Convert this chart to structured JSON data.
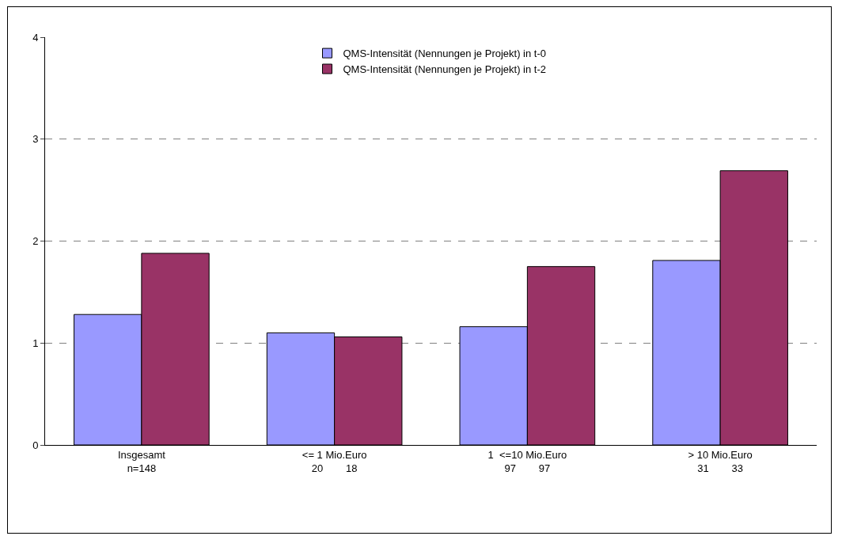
{
  "chart_data": {
    "type": "bar",
    "categories": [
      "Insgesamt\nn=148",
      "<= 1 Mio.Euro\n20        18",
      "1  <=10 Mio.Euro\n97        97",
      "> 10 Mio.Euro\n31        33"
    ],
    "series": [
      {
        "name": "QMS-Intensität (Nennungen je Projekt) in t-0",
        "color": "#9999ff",
        "values": [
          1.28,
          1.1,
          1.16,
          1.81
        ]
      },
      {
        "name": "QMS-Intensität (Nennungen je Projekt) in t-2",
        "color": "#993366",
        "values": [
          1.88,
          1.06,
          1.75,
          2.69
        ]
      }
    ],
    "ylim": [
      0,
      4
    ],
    "yticks": [
      0,
      1,
      2,
      3,
      4
    ],
    "grid": "y",
    "legend": "top"
  }
}
